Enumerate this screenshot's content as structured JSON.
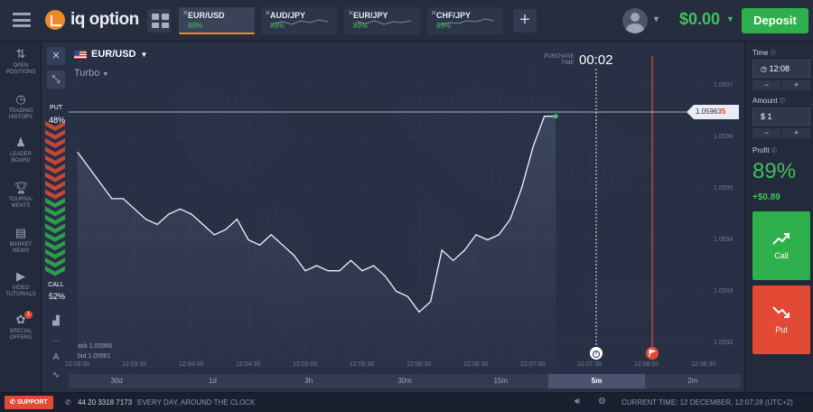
{
  "header": {
    "logo_text": "iq option",
    "tabs": [
      {
        "name": "EUR/USD",
        "pct": "89%",
        "active": true
      },
      {
        "name": "AUD/JPY",
        "pct": "89%",
        "active": false
      },
      {
        "name": "EUR/JPY",
        "pct": "89%",
        "active": false
      },
      {
        "name": "CHF/JPY",
        "pct": "89%",
        "active": false
      }
    ],
    "add_tab": "+",
    "balance": "$0.00",
    "deposit_label": "Deposit"
  },
  "sidebar": {
    "items": [
      {
        "label": "OPEN\nPOSITIONS",
        "icon": "arrows-updown-icon"
      },
      {
        "label": "TRADING\nHISTORY",
        "icon": "clock-history-icon"
      },
      {
        "label": "LEADER\nBOARD",
        "icon": "people-icon"
      },
      {
        "label": "TOURNA-\nMENTS",
        "icon": "trophy-icon"
      },
      {
        "label": "MARKET\nNEWS",
        "icon": "newspaper-icon"
      },
      {
        "label": "VIDEO\nTUTORIALS",
        "icon": "play-icon"
      },
      {
        "label": "SPECIAL\nOFFERS",
        "icon": "gift-icon",
        "badge": "1"
      }
    ]
  },
  "chart": {
    "asset": "EUR/USD",
    "mode": "Turbo",
    "purchase_time_label": "PURCHASE\nTIME",
    "purchase_time": "00:02",
    "current_price_main": "1.0596",
    "current_price_tail": "35",
    "put_label": "PUT",
    "put_pct": "48%",
    "call_label": "CALL",
    "call_pct": "52%",
    "ask": "ask 1.05966",
    "bid": "bid 1.05961",
    "timeframes": [
      {
        "label": "30d",
        "active": false
      },
      {
        "label": "1d",
        "active": false
      },
      {
        "label": "3h",
        "active": false
      },
      {
        "label": "30m",
        "active": false
      },
      {
        "label": "15m",
        "active": false
      },
      {
        "label": "5m",
        "active": true
      },
      {
        "label": "2m",
        "active": false
      }
    ],
    "accent_put": "#e24a36",
    "accent_call": "#2eb04c"
  },
  "chart_data": {
    "type": "line",
    "title": "",
    "x_ticks": [
      "12:03:00",
      "12:03:30",
      "12:04:00",
      "12:04:30",
      "12:05:00",
      "12:05:30",
      "12:06:00",
      "12:06:30",
      "12:07:00",
      "12:07:30",
      "12:08:00",
      "12:08:30"
    ],
    "y_ticks": [
      "1.0597",
      "1.0596",
      "1.0595",
      "1.0594",
      "1.0593",
      "1.0592"
    ],
    "ylim": [
      1.05915,
      1.05975
    ],
    "current_price": 1.059635,
    "series": [
      {
        "x_seconds": [
          0,
          6,
          12,
          18,
          24,
          30,
          36,
          42,
          48,
          54,
          60,
          66,
          72,
          78,
          84,
          90,
          96,
          102,
          108,
          114,
          120,
          126,
          132,
          138,
          144,
          150,
          156,
          162,
          168,
          174,
          180,
          186,
          192,
          198,
          204,
          210,
          216,
          222,
          228,
          234,
          240,
          246,
          252
        ],
        "values": [
          1.05957,
          1.05954,
          1.05951,
          1.05948,
          1.05948,
          1.05946,
          1.05944,
          1.05943,
          1.05945,
          1.05946,
          1.05945,
          1.05943,
          1.05941,
          1.05942,
          1.05944,
          1.0594,
          1.05939,
          1.05941,
          1.05939,
          1.05937,
          1.05934,
          1.05935,
          1.05934,
          1.05934,
          1.05936,
          1.05934,
          1.05935,
          1.05933,
          1.0593,
          1.05929,
          1.05926,
          1.05928,
          1.05938,
          1.05936,
          1.05938,
          1.05941,
          1.0594,
          1.05941,
          1.05944,
          1.0595,
          1.05958,
          1.05964,
          1.05964
        ]
      }
    ]
  },
  "right_panel": {
    "time_label": "Time",
    "time_value": "12:08",
    "amount_label": "Amount",
    "amount_value": "$ 1",
    "minus": "−",
    "plus": "+",
    "profit_label": "Profit",
    "profit_pct": "89%",
    "profit_amount": "+$0.89",
    "call_label": "Call",
    "put_label": "Put"
  },
  "footer": {
    "support": "SUPPORT",
    "phone": "44 20 3318 7173",
    "tagline": "EVERY DAY, AROUND THE CLOCK",
    "current_time": "CURRENT TIME: 12 DECEMBER, 12:07:28 (UTC+2)"
  }
}
